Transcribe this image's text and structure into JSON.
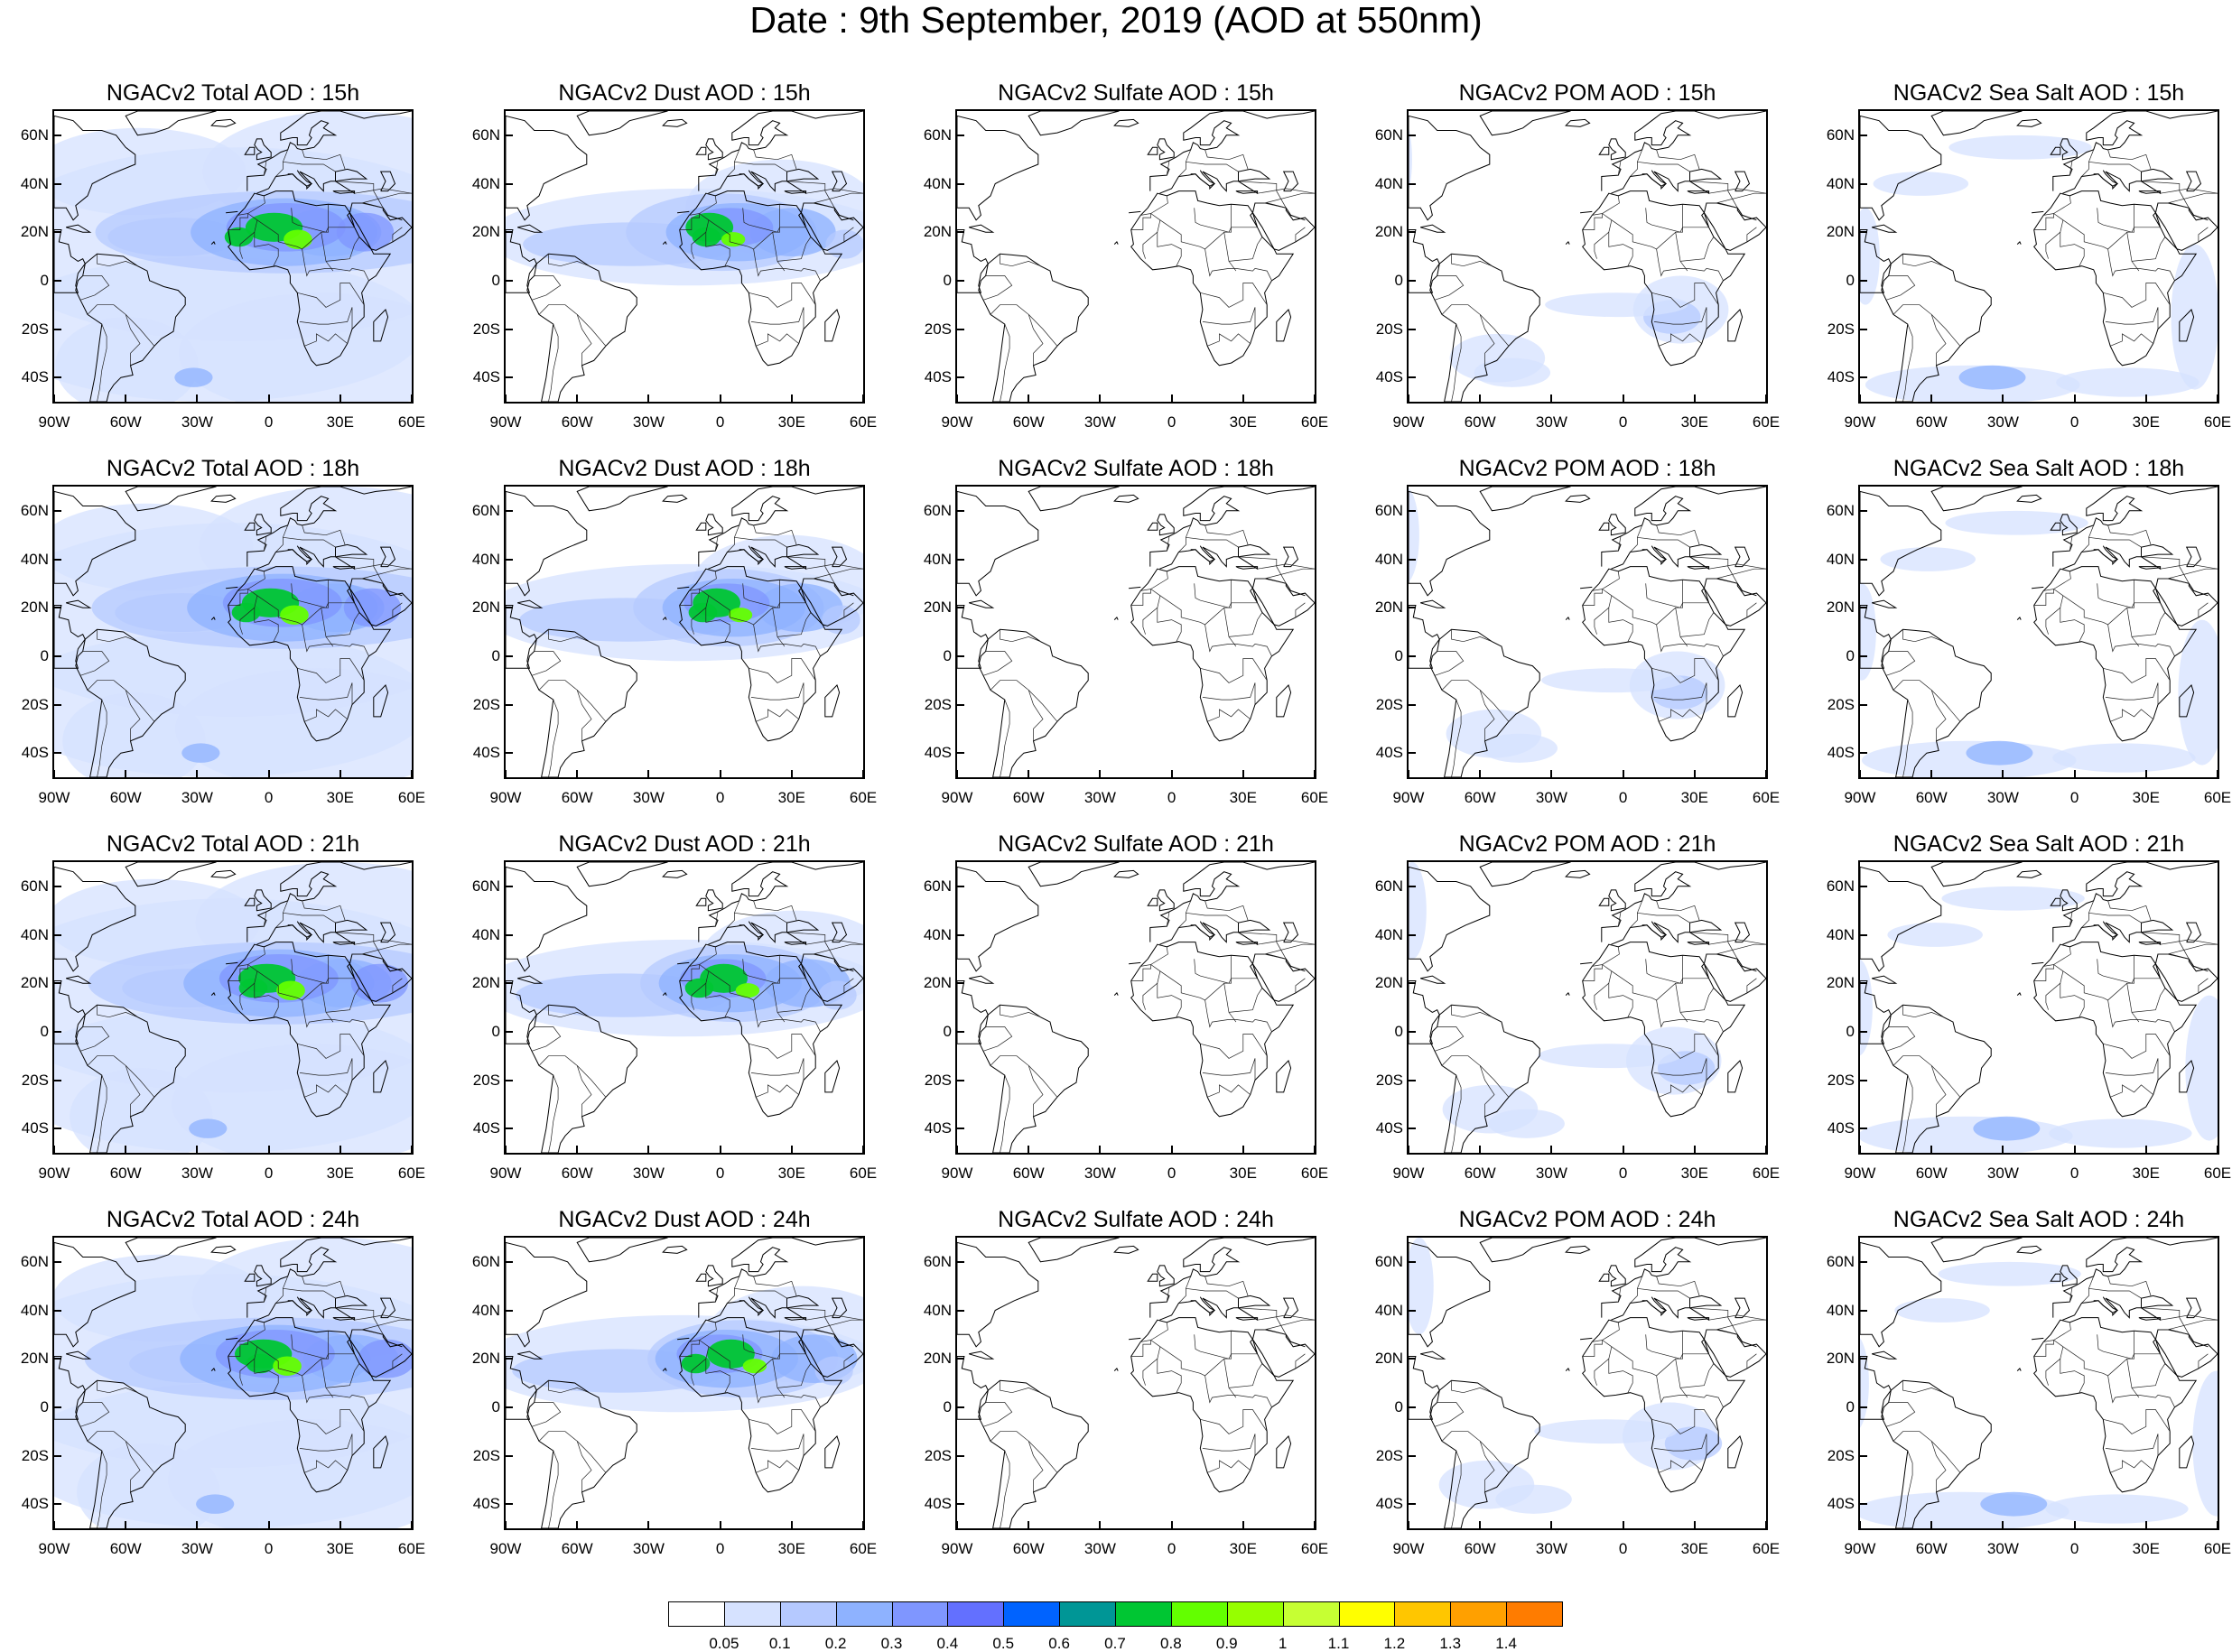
{
  "title": "Date : 9th September, 2019 (AOD at 550nm)",
  "panels": [
    "NGACv2 Total AOD : 15h",
    "NGACv2 Dust AOD : 15h",
    "NGACv2 Sulfate AOD : 15h",
    "NGACv2 POM AOD : 15h",
    "NGACv2 Sea Salt AOD : 15h",
    "NGACv2 Total AOD : 18h",
    "NGACv2 Dust AOD : 18h",
    "NGACv2 Sulfate AOD : 18h",
    "NGACv2 POM AOD : 18h",
    "NGACv2 Sea Salt AOD : 18h",
    "NGACv2 Total AOD : 21h",
    "NGACv2 Dust AOD : 21h",
    "NGACv2 Sulfate AOD : 21h",
    "NGACv2 POM AOD : 21h",
    "NGACv2 Sea Salt AOD : 21h",
    "NGACv2 Total AOD : 24h",
    "NGACv2 Dust AOD : 24h",
    "NGACv2 Sulfate AOD : 24h",
    "NGACv2 POM AOD : 24h",
    "NGACv2 Sea Salt  AOD : 24h"
  ],
  "panel_species": [
    "total",
    "dust",
    "sulfate",
    "pom",
    "seasalt",
    "total",
    "dust",
    "sulfate",
    "pom",
    "seasalt",
    "total",
    "dust",
    "sulfate",
    "pom",
    "seasalt",
    "total",
    "dust",
    "sulfate",
    "pom",
    "seasalt"
  ],
  "lat_labels": [
    "60N",
    "40N",
    "20N",
    "0",
    "20S",
    "40S"
  ],
  "lat_values": [
    60,
    40,
    20,
    0,
    -20,
    -40
  ],
  "lon_labels": [
    "90W",
    "60W",
    "30W",
    "0",
    "30E",
    "60E"
  ],
  "lon_values": [
    -90,
    -60,
    -30,
    0,
    30,
    60
  ],
  "extent": {
    "lon": [
      -90,
      60
    ],
    "lat": [
      -50,
      70
    ]
  },
  "colorbar": {
    "labels": [
      "0.05",
      "0.1",
      "0.2",
      "0.3",
      "0.4",
      "0.5",
      "0.6",
      "0.7",
      "0.8",
      "0.9",
      "1",
      "1.1",
      "1.2",
      "1.3",
      "1.4"
    ],
    "colors": [
      "#ffffff",
      "#d6e2ff",
      "#b5c9ff",
      "#8eb2ff",
      "#7f96ff",
      "#6370ff",
      "#0063ff",
      "#009696",
      "#00c633",
      "#63ff00",
      "#96ff00",
      "#c6ff33",
      "#ffff00",
      "#ffc600",
      "#ffa000",
      "#ff7c00",
      "#ff1900"
    ]
  }
}
